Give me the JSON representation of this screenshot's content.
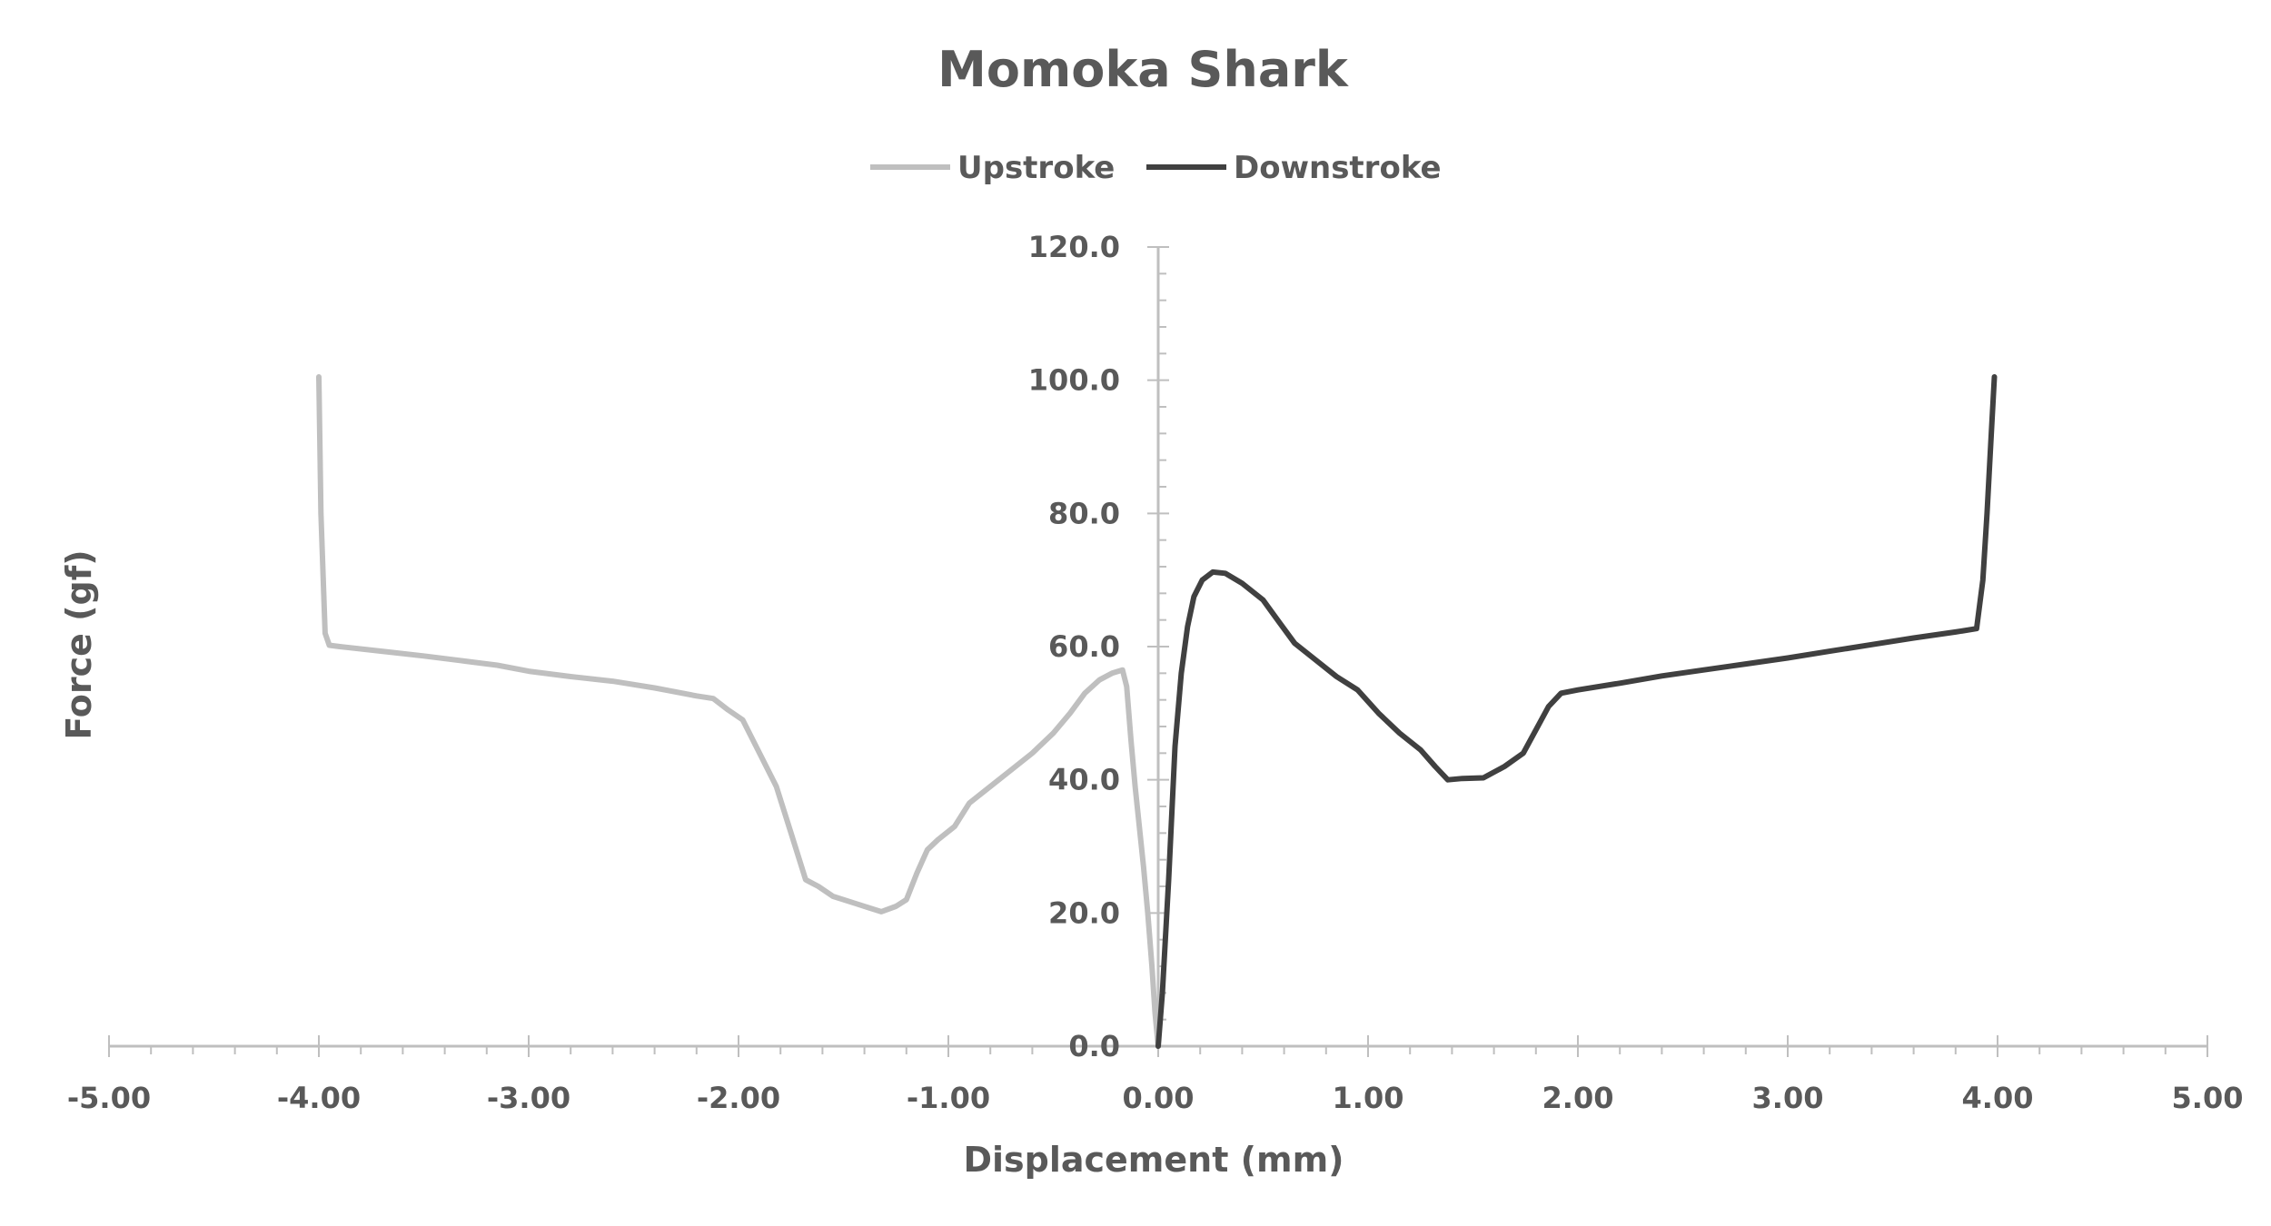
{
  "chart_data": {
    "type": "line",
    "title": "Momoka Shark",
    "xlabel": "Displacement (mm)",
    "ylabel": "Force (gf)",
    "xlim": [
      -5,
      5
    ],
    "ylim": [
      0,
      120
    ],
    "x_ticks": [
      "-5.00",
      "-4.00",
      "-3.00",
      "-2.00",
      "-1.00",
      "0.00",
      "1.00",
      "2.00",
      "3.00",
      "4.00",
      "5.00"
    ],
    "y_ticks": [
      "0.0",
      "20.0",
      "40.0",
      "60.0",
      "80.0",
      "100.0",
      "120.0"
    ],
    "legend_position": "top-center",
    "grid": false,
    "series": [
      {
        "name": "Upstroke",
        "color": "#bfbfbf",
        "points": [
          [
            -4.0,
            100.5
          ],
          [
            -3.99,
            80
          ],
          [
            -3.97,
            62
          ],
          [
            -3.95,
            60.2
          ],
          [
            -3.9,
            60
          ],
          [
            -3.7,
            59.3
          ],
          [
            -3.5,
            58.6
          ],
          [
            -3.3,
            57.8
          ],
          [
            -3.15,
            57.2
          ],
          [
            -3.0,
            56.3
          ],
          [
            -2.8,
            55.5
          ],
          [
            -2.6,
            54.8
          ],
          [
            -2.4,
            53.8
          ],
          [
            -2.2,
            52.6
          ],
          [
            -2.12,
            52.2
          ],
          [
            -2.05,
            50.5
          ],
          [
            -1.98,
            49
          ],
          [
            -1.9,
            44
          ],
          [
            -1.82,
            39
          ],
          [
            -1.75,
            32
          ],
          [
            -1.68,
            25
          ],
          [
            -1.62,
            24
          ],
          [
            -1.55,
            22.5
          ],
          [
            -1.45,
            21.5
          ],
          [
            -1.38,
            20.8
          ],
          [
            -1.32,
            20.2
          ],
          [
            -1.25,
            21
          ],
          [
            -1.2,
            22
          ],
          [
            -1.15,
            26
          ],
          [
            -1.1,
            29.5
          ],
          [
            -1.05,
            31
          ],
          [
            -0.97,
            33
          ],
          [
            -0.9,
            36.5
          ],
          [
            -0.8,
            39
          ],
          [
            -0.7,
            41.5
          ],
          [
            -0.6,
            44
          ],
          [
            -0.5,
            47
          ],
          [
            -0.42,
            50
          ],
          [
            -0.35,
            53
          ],
          [
            -0.28,
            55
          ],
          [
            -0.22,
            56
          ],
          [
            -0.17,
            56.5
          ],
          [
            -0.15,
            54
          ],
          [
            -0.13,
            46
          ],
          [
            -0.11,
            39
          ],
          [
            -0.09,
            33
          ],
          [
            -0.07,
            27
          ],
          [
            -0.05,
            20
          ],
          [
            -0.03,
            12
          ],
          [
            -0.015,
            5
          ],
          [
            0.0,
            0.0
          ]
        ]
      },
      {
        "name": "Downstroke",
        "color": "#404040",
        "points": [
          [
            0.0,
            0.0
          ],
          [
            0.02,
            8
          ],
          [
            0.05,
            25
          ],
          [
            0.08,
            45
          ],
          [
            0.11,
            56
          ],
          [
            0.14,
            63
          ],
          [
            0.17,
            67.5
          ],
          [
            0.21,
            70
          ],
          [
            0.26,
            71.2
          ],
          [
            0.32,
            71
          ],
          [
            0.4,
            69.5
          ],
          [
            0.5,
            67
          ],
          [
            0.58,
            63.5
          ],
          [
            0.65,
            60.5
          ],
          [
            0.75,
            58
          ],
          [
            0.85,
            55.5
          ],
          [
            0.95,
            53.5
          ],
          [
            1.05,
            50
          ],
          [
            1.15,
            47
          ],
          [
            1.25,
            44.5
          ],
          [
            1.32,
            42
          ],
          [
            1.38,
            40
          ],
          [
            1.45,
            40.2
          ],
          [
            1.55,
            40.3
          ],
          [
            1.65,
            42
          ],
          [
            1.74,
            44
          ],
          [
            1.8,
            47.5
          ],
          [
            1.86,
            51
          ],
          [
            1.92,
            53
          ],
          [
            2.0,
            53.5
          ],
          [
            2.2,
            54.5
          ],
          [
            2.4,
            55.6
          ],
          [
            2.6,
            56.5
          ],
          [
            2.8,
            57.4
          ],
          [
            3.0,
            58.3
          ],
          [
            3.2,
            59.3
          ],
          [
            3.4,
            60.3
          ],
          [
            3.6,
            61.3
          ],
          [
            3.8,
            62.2
          ],
          [
            3.9,
            62.7
          ],
          [
            3.93,
            70
          ],
          [
            3.95,
            80
          ],
          [
            3.97,
            92
          ],
          [
            3.985,
            100.5
          ]
        ]
      }
    ]
  }
}
